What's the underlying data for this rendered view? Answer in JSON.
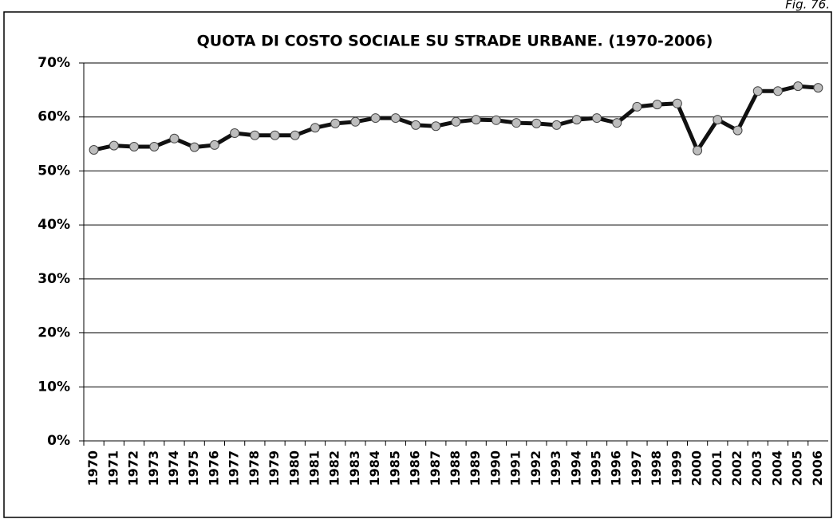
{
  "fig_label": "Fig. 76.",
  "chart_data": {
    "type": "line",
    "title": "QUOTA DI COSTO SOCIALE SU STRADE URBANE. (1970-2006)",
    "categories": [
      "1970",
      "1971",
      "1972",
      "1973",
      "1974",
      "1975",
      "1976",
      "1977",
      "1978",
      "1979",
      "1980",
      "1981",
      "1982",
      "1983",
      "1984",
      "1985",
      "1986",
      "1987",
      "1988",
      "1989",
      "1990",
      "1991",
      "1992",
      "1993",
      "1994",
      "1995",
      "1996",
      "1997",
      "1998",
      "1999",
      "2000",
      "2001",
      "2002",
      "2003",
      "2004",
      "2005",
      "2006"
    ],
    "values": [
      53.9,
      54.7,
      54.5,
      54.5,
      56.0,
      54.4,
      54.8,
      57.0,
      56.6,
      56.6,
      56.6,
      58.0,
      58.8,
      59.1,
      59.8,
      59.8,
      58.5,
      58.3,
      59.1,
      59.5,
      59.4,
      58.9,
      58.8,
      58.5,
      59.5,
      59.8,
      58.9,
      61.9,
      62.3,
      62.5,
      53.8,
      59.5,
      57.5,
      64.8,
      64.8,
      65.7,
      65.4
    ],
    "color": "#111111",
    "marker_color": "#bdbdbd",
    "ylim": [
      0,
      70
    ],
    "yticks": [
      {
        "value": 0,
        "label": "0%"
      },
      {
        "value": 10,
        "label": "10%"
      },
      {
        "value": 20,
        "label": "20%"
      },
      {
        "value": 30,
        "label": "30%"
      },
      {
        "value": 40,
        "label": "40%"
      },
      {
        "value": 50,
        "label": "50%"
      },
      {
        "value": 60,
        "label": "60%"
      },
      {
        "value": 70,
        "label": "70%"
      }
    ],
    "grid": true
  }
}
